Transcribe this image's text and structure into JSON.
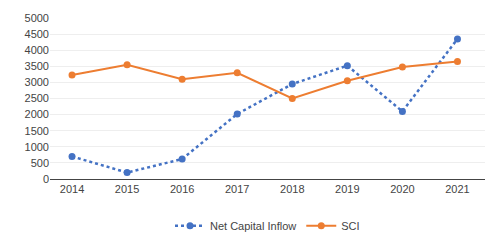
{
  "chart_data": {
    "type": "line",
    "x": [
      2014,
      2015,
      2016,
      2017,
      2018,
      2019,
      2020,
      2021
    ],
    "series": [
      {
        "name": "Net Capital Inflow",
        "color": "#4472C4",
        "line_style": "dotted",
        "marker": "circle",
        "values": [
          700,
          200,
          620,
          2020,
          2950,
          3520,
          2100,
          4350
        ]
      },
      {
        "name": "SCI",
        "color": "#ED7D31",
        "line_style": "solid",
        "marker": "circle",
        "values": [
          3230,
          3550,
          3100,
          3300,
          2500,
          3050,
          3480,
          3650
        ]
      }
    ],
    "xlim": [
      2013.6,
      2021.5
    ],
    "xticks": [
      2014,
      2015,
      2016,
      2017,
      2018,
      2019,
      2020,
      2021
    ],
    "ylim": [
      0,
      5000
    ],
    "yticks": [
      0,
      500,
      1000,
      1500,
      2000,
      2500,
      3000,
      3500,
      4000,
      4500,
      5000
    ],
    "grid": "y",
    "legend": "bottom"
  }
}
